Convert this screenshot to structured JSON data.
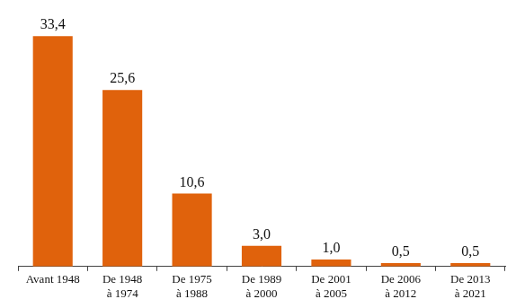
{
  "chart_data": {
    "type": "bar",
    "categories": [
      "Avant 1948",
      "De 1948 à 1974",
      "De 1975 à 1988",
      "De 1989 à 2000",
      "De 2001 à 2005",
      "De 2006 à 2012",
      "De 2013 à 2021"
    ],
    "values": [
      33.4,
      25.6,
      10.6,
      3.0,
      1.0,
      0.5,
      0.5
    ],
    "value_labels": [
      "33,4",
      "25,6",
      "10,6",
      "3,0",
      "1,0",
      "0,5",
      "0,5"
    ],
    "color": "#e0620c",
    "data_labels": true,
    "grid": false,
    "tick_labels": "x"
  }
}
